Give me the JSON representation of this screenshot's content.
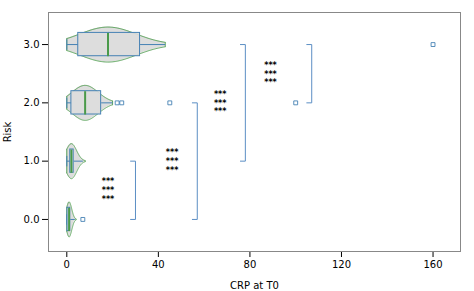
{
  "chart_data": {
    "type": "box",
    "orientation": "horizontal",
    "xlabel": "CRP at T0",
    "ylabel": "Risk",
    "xlim": [
      -8,
      172
    ],
    "xticks": [
      0,
      40,
      80,
      120,
      160
    ],
    "ylim": [
      -0.55,
      3.55
    ],
    "yticks": [
      0,
      1,
      2,
      3
    ],
    "groups": [
      {
        "y": 0,
        "median": 1,
        "q1": 0.3,
        "q3": 1.5,
        "whisker_low": 0,
        "whisker_high": 3.5,
        "violin_max": 4,
        "outliers": [
          7
        ]
      },
      {
        "y": 1,
        "median": 2,
        "q1": 1.5,
        "q3": 3,
        "whisker_low": 0,
        "whisker_high": 7,
        "violin_max": 8,
        "outliers": []
      },
      {
        "y": 2,
        "median": 8,
        "q1": 2,
        "q3": 15,
        "whisker_low": 0,
        "whisker_high": 20,
        "violin_max": 20,
        "outliers": [
          22,
          24,
          45,
          100
        ]
      },
      {
        "y": 3,
        "median": 18,
        "q1": 5,
        "q3": 32,
        "whisker_low": 0,
        "whisker_high": 43,
        "violin_max": 43,
        "outliers": [
          160
        ]
      }
    ],
    "brackets": [
      {
        "x": 30,
        "y1": 0,
        "y2": 1
      },
      {
        "x": 57,
        "y1": 0,
        "y2": 2
      },
      {
        "x": 78,
        "y1": 1,
        "y2": 3
      },
      {
        "x": 107,
        "y1": 2,
        "y2": 3
      }
    ],
    "annotations": [
      {
        "text": "***\n***\n***",
        "x": 18,
        "y": 0.5
      },
      {
        "text": "***\n***\n***",
        "x": 46,
        "y": 1.0
      },
      {
        "text": "***\n***\n***",
        "x": 67,
        "y": 2.0
      },
      {
        "text": "***\n***\n***",
        "x": 89,
        "y": 2.5
      }
    ]
  }
}
